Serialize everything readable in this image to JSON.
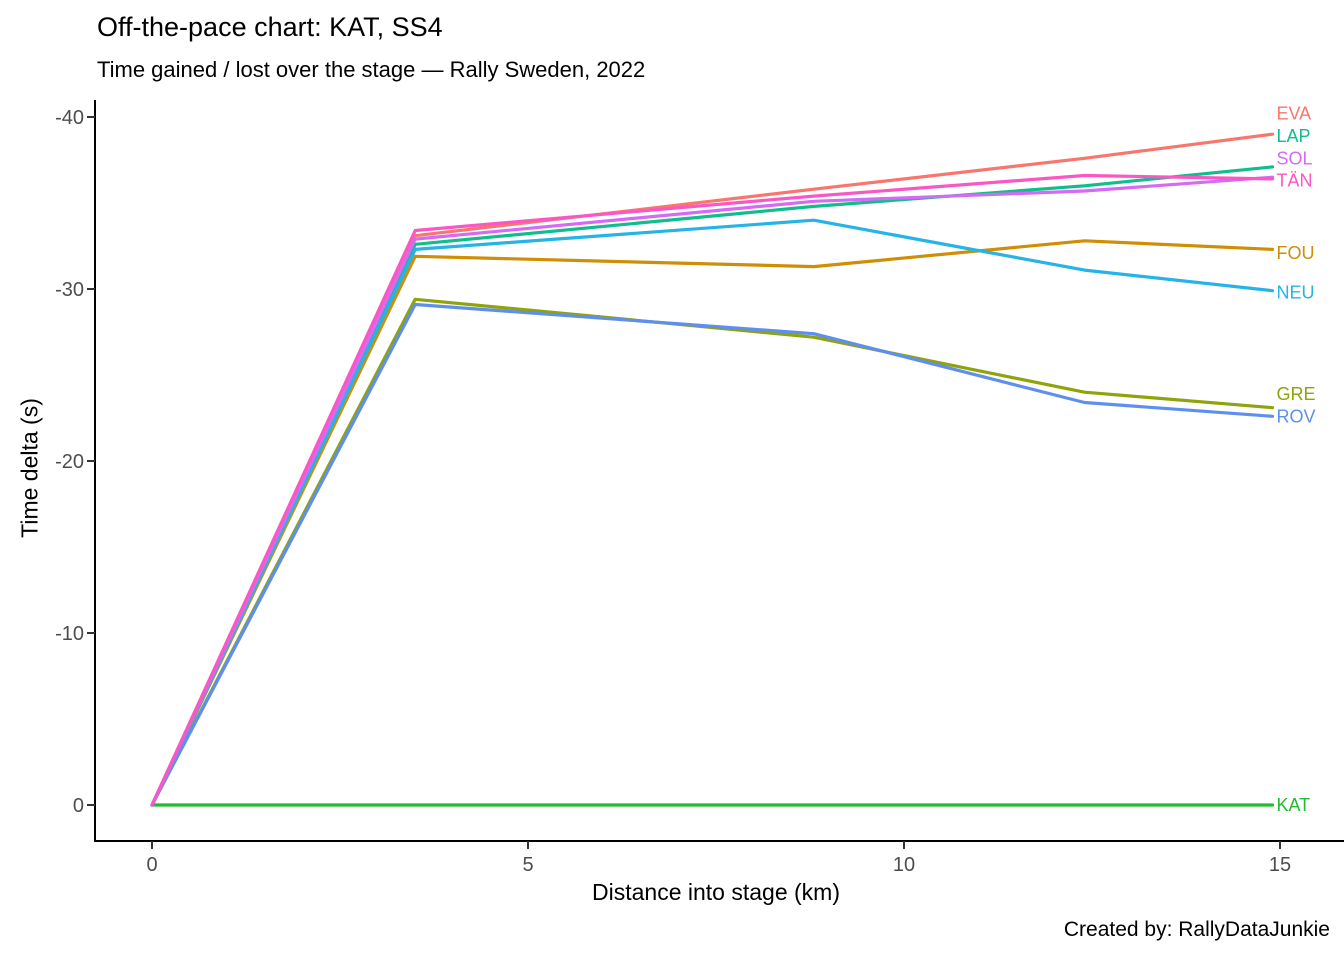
{
  "page": {
    "title": "Off-the-pace chart: KAT, SS4",
    "subtitle": "Time gained / lost over the stage — Rally Sweden, 2022",
    "footer": "Created by: RallyDataJunkie"
  },
  "chart_data": {
    "type": "line",
    "title": "Off-the-pace chart: KAT, SS4",
    "subtitle": "Time gained / lost over the stage — Rally Sweden, 2022",
    "xlabel": "Distance into stage (km)",
    "ylabel": "Time delta (s)",
    "x_ticks": [
      0,
      5,
      10,
      15
    ],
    "y_ticks": [
      -40,
      -30,
      -20,
      -10,
      0
    ],
    "xlim": [
      -0.75,
      15.85
    ],
    "ylim_top": -41,
    "ylim_bottom": 2.1,
    "grid": false,
    "legend_position": "inline-right-labels",
    "axis_color": "#000000",
    "tick_label_color": "#4d4d4d",
    "x": [
      0,
      3.5,
      8.8,
      12.4,
      14.9
    ],
    "series": [
      {
        "name": "EVA",
        "color": "#F8766D",
        "values": [
          0,
          -33.1,
          -35.8,
          -37.6,
          -39.0
        ],
        "label_at": -40.2
      },
      {
        "name": "FOU",
        "color": "#CE8E05",
        "values": [
          0,
          -31.9,
          -31.3,
          -32.8,
          -32.3
        ],
        "label_at": -32.1
      },
      {
        "name": "GRE",
        "color": "#8FA30A",
        "values": [
          0,
          -29.4,
          -27.2,
          -24.0,
          -23.1
        ],
        "label_at": -23.9
      },
      {
        "name": "KAT",
        "color": "#22BB33",
        "values": [
          0,
          0,
          0,
          0,
          0
        ],
        "label_at": 0
      },
      {
        "name": "LAP",
        "color": "#10BD8C",
        "values": [
          0,
          -32.6,
          -34.8,
          -36.0,
          -37.1
        ],
        "label_at": -38.9
      },
      {
        "name": "NEU",
        "color": "#26B3E6",
        "values": [
          0,
          -32.3,
          -34.0,
          -31.1,
          -29.9
        ],
        "label_at": -29.8
      },
      {
        "name": "ROV",
        "color": "#5E8FEE",
        "values": [
          0,
          -29.1,
          -27.4,
          -23.4,
          -22.6
        ],
        "label_at": -22.6
      },
      {
        "name": "SOL",
        "color": "#D46AF6",
        "values": [
          0,
          -32.9,
          -35.1,
          -35.7,
          -36.5
        ],
        "label_at": -37.6
      },
      {
        "name": "TÄN",
        "color": "#FB57C4",
        "values": [
          0,
          -33.4,
          -35.4,
          -36.6,
          -36.4
        ],
        "label_at": -36.3
      }
    ]
  }
}
